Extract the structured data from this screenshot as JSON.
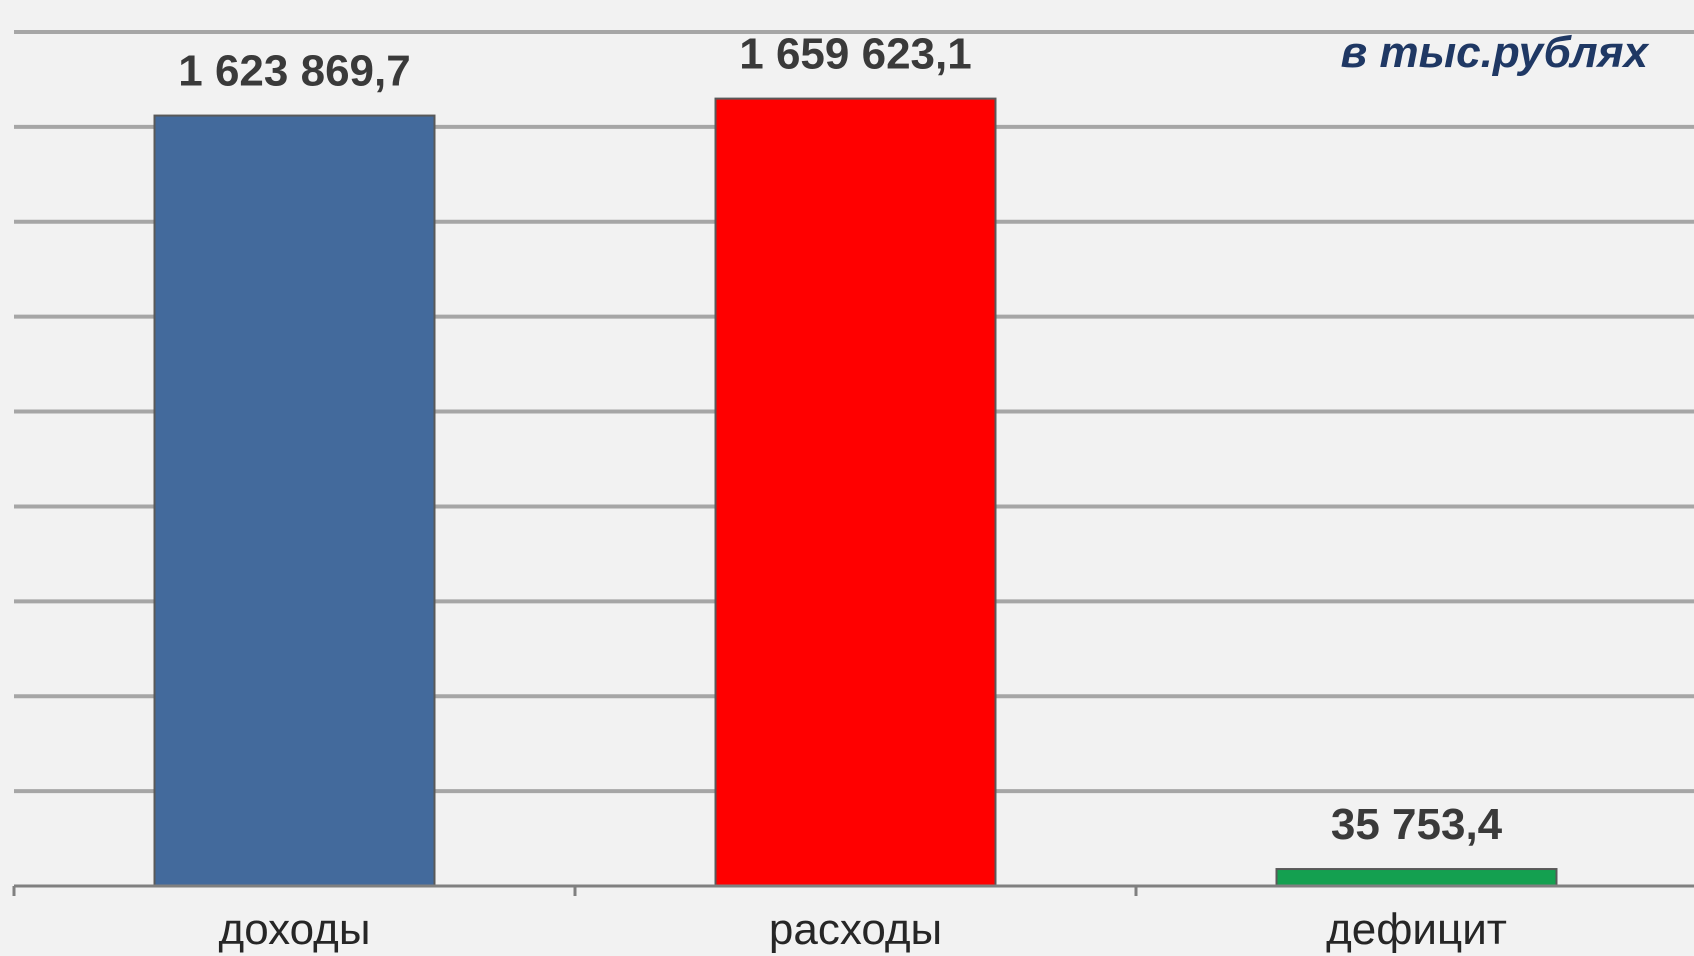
{
  "chart_data": {
    "type": "bar",
    "categories": [
      "доходы",
      "расходы",
      "дефицит"
    ],
    "values": [
      1623869.7,
      1659623.1,
      35753.4
    ],
    "data_labels": [
      "1 623 869,7",
      "1 659 623,1",
      "35 753,4"
    ],
    "colors": [
      "#436a9c",
      "#ff0000",
      "#14a050"
    ],
    "unit_note": "в тыс.рублях",
    "title": "",
    "xlabel": "",
    "ylabel": "",
    "ylim": [
      0,
      1800000
    ],
    "grid": true,
    "grid_step": 200000
  }
}
